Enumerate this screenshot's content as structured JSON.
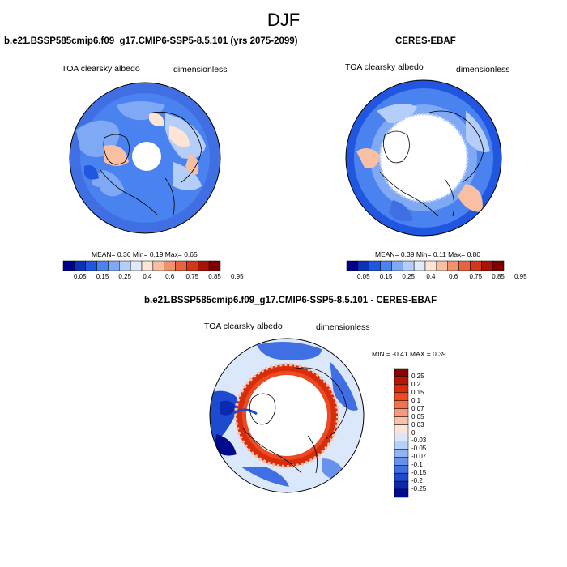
{
  "page_title": "DJF",
  "panels": [
    {
      "title": "b.e21.BSSP585cmip6.f09_g17.CMIP6-SSP5-8.5.101 (yrs 2075-2099)",
      "variable": "TOA clearsky albedo",
      "units": "dimensionless",
      "stats": {
        "mean_label": "MEAN=",
        "mean": "0.36",
        "min_label": "Min=",
        "min": "0.19",
        "max_label": "Max=",
        "max": "0.65"
      }
    },
    {
      "title": "CERES-EBAF",
      "variable": "TOA clearsky albedo",
      "units": "dimensionless",
      "stats": {
        "mean_label": "MEAN=",
        "mean": "0.39",
        "min_label": "Min=",
        "min": "0.11",
        "max_label": "Max=",
        "max": "0.80"
      }
    }
  ],
  "colorbar": {
    "ticks": [
      "0.05",
      "0.15",
      "0.25",
      "0.4",
      "0.6",
      "0.75",
      "0.85",
      "0.95"
    ],
    "colors": [
      "#00008b",
      "#0b31b5",
      "#2157e0",
      "#4a82f0",
      "#7fa9f5",
      "#b5cdf9",
      "#e0ebfa",
      "#fde4d5",
      "#f8bfa3",
      "#f1926e",
      "#e8633f",
      "#d13718",
      "#a81306",
      "#800000"
    ]
  },
  "diff_panel": {
    "title": "b.e21.BSSP585cmip6.f09_g17.CMIP6-SSP5-8.5.101 - CERES-EBAF",
    "variable": "TOA clearsky albedo",
    "units": "dimensionless",
    "minmax": "MIN = -0.41 MAX =  0.39",
    "colorbar_ticks": [
      "0.25",
      "0.2",
      "0.15",
      "0.1",
      "0.07",
      "0.05",
      "0.03",
      "0",
      "-0.03",
      "-0.05",
      "-0.07",
      "-0.1",
      "-0.15",
      "-0.2",
      "-0.25"
    ],
    "colorbar_colors": [
      "#8b0000",
      "#b31705",
      "#d92c0b",
      "#eb4a23",
      "#f2724d",
      "#f6997c",
      "#fac0a8",
      "#fde4d8",
      "#dbe8fb",
      "#b6d0f8",
      "#8fb3f3",
      "#6792ec",
      "#3f6fe2",
      "#1d4bcf",
      "#0a28b0",
      "#000a8c"
    ]
  }
}
